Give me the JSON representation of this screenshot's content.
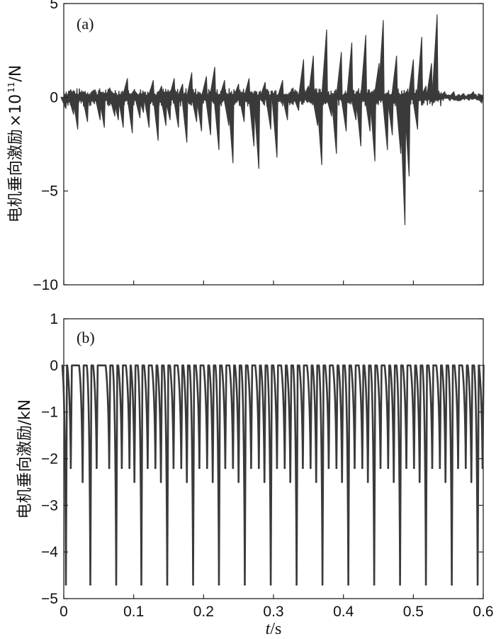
{
  "chart_data": [
    {
      "panel": "(a)",
      "type": "line",
      "ylabel": "电机垂向激励",
      "ylabel_scale": "×10",
      "ylabel_exponent": "11",
      "ylabel_unit": "/N",
      "ylim": [
        -10,
        5
      ],
      "xlim": [
        0,
        0.6
      ],
      "yticks": [
        "5",
        "0",
        "−5",
        "−10"
      ],
      "ytick_values": [
        5,
        0,
        -5,
        -10
      ],
      "xtick_values": [
        0,
        0.1,
        0.2,
        0.3,
        0.4,
        0.5,
        0.6
      ],
      "color": "#3a3a3a",
      "spikes": [
        {
          "x": 0.003,
          "y": -0.6
        },
        {
          "x": 0.01,
          "y": 0.4
        },
        {
          "x": 0.014,
          "y": -0.9
        },
        {
          "x": 0.02,
          "y": -1.7
        },
        {
          "x": 0.028,
          "y": 0.3
        },
        {
          "x": 0.034,
          "y": -1.3
        },
        {
          "x": 0.045,
          "y": 0.4
        },
        {
          "x": 0.052,
          "y": -1.2
        },
        {
          "x": 0.058,
          "y": -1.6
        },
        {
          "x": 0.066,
          "y": 0.5
        },
        {
          "x": 0.073,
          "y": -1.0
        },
        {
          "x": 0.078,
          "y": -1.2
        },
        {
          "x": 0.085,
          "y": -1.6
        },
        {
          "x": 0.091,
          "y": 1.0
        },
        {
          "x": 0.098,
          "y": -1.9
        },
        {
          "x": 0.101,
          "y": 0.4
        },
        {
          "x": 0.109,
          "y": -1.1
        },
        {
          "x": 0.114,
          "y": -0.8
        },
        {
          "x": 0.122,
          "y": -1.6
        },
        {
          "x": 0.128,
          "y": 0.9
        },
        {
          "x": 0.135,
          "y": -2.3
        },
        {
          "x": 0.14,
          "y": 0.6
        },
        {
          "x": 0.146,
          "y": -1.5
        },
        {
          "x": 0.152,
          "y": -1.2
        },
        {
          "x": 0.158,
          "y": 1.0
        },
        {
          "x": 0.164,
          "y": -1.6
        },
        {
          "x": 0.17,
          "y": 0.7
        },
        {
          "x": 0.176,
          "y": -2.4
        },
        {
          "x": 0.183,
          "y": 1.3
        },
        {
          "x": 0.19,
          "y": -1.3
        },
        {
          "x": 0.197,
          "y": -1.8
        },
        {
          "x": 0.204,
          "y": 1.1
        },
        {
          "x": 0.21,
          "y": -2.0
        },
        {
          "x": 0.216,
          "y": 1.6
        },
        {
          "x": 0.222,
          "y": -2.8
        },
        {
          "x": 0.23,
          "y": 0.9
        },
        {
          "x": 0.236,
          "y": -1.5
        },
        {
          "x": 0.242,
          "y": -3.5
        },
        {
          "x": 0.25,
          "y": 0.7
        },
        {
          "x": 0.258,
          "y": -1.3
        },
        {
          "x": 0.265,
          "y": 1.0
        },
        {
          "x": 0.272,
          "y": -2.6
        },
        {
          "x": 0.279,
          "y": -3.8
        },
        {
          "x": 0.288,
          "y": 0.8
        },
        {
          "x": 0.296,
          "y": -1.7
        },
        {
          "x": 0.305,
          "y": -3.2
        },
        {
          "x": 0.313,
          "y": 0.9
        },
        {
          "x": 0.32,
          "y": -1.2
        },
        {
          "x": 0.328,
          "y": 0.5
        },
        {
          "x": 0.336,
          "y": -0.7
        },
        {
          "x": 0.343,
          "y": 2.0
        },
        {
          "x": 0.35,
          "y": 0.6
        },
        {
          "x": 0.357,
          "y": 2.2
        },
        {
          "x": 0.363,
          "y": -1.5
        },
        {
          "x": 0.369,
          "y": -3.6
        },
        {
          "x": 0.376,
          "y": 3.6
        },
        {
          "x": 0.383,
          "y": -1.0
        },
        {
          "x": 0.39,
          "y": -3.0
        },
        {
          "x": 0.397,
          "y": 2.4
        },
        {
          "x": 0.404,
          "y": -1.8
        },
        {
          "x": 0.412,
          "y": 2.9
        },
        {
          "x": 0.418,
          "y": -1.2
        },
        {
          "x": 0.425,
          "y": -2.6
        },
        {
          "x": 0.432,
          "y": 3.3
        },
        {
          "x": 0.438,
          "y": -1.8
        },
        {
          "x": 0.445,
          "y": -3.4
        },
        {
          "x": 0.451,
          "y": 1.8
        },
        {
          "x": 0.457,
          "y": 4.1
        },
        {
          "x": 0.463,
          "y": -2.8
        },
        {
          "x": 0.47,
          "y": -2.0
        },
        {
          "x": 0.476,
          "y": 2.2
        },
        {
          "x": 0.482,
          "y": -3.0
        },
        {
          "x": 0.488,
          "y": -6.8
        },
        {
          "x": 0.494,
          "y": -4.2
        },
        {
          "x": 0.5,
          "y": 2.0
        },
        {
          "x": 0.506,
          "y": -1.7
        },
        {
          "x": 0.512,
          "y": 3.2
        },
        {
          "x": 0.518,
          "y": 0.6
        },
        {
          "x": 0.526,
          "y": 1.8
        },
        {
          "x": 0.534,
          "y": 4.4
        },
        {
          "x": 0.545,
          "y": 0.3
        },
        {
          "x": 0.558,
          "y": 0.3
        },
        {
          "x": 0.572,
          "y": 0.2
        },
        {
          "x": 0.586,
          "y": 0.3
        },
        {
          "x": 0.598,
          "y": -0.3
        }
      ]
    },
    {
      "panel": "(b)",
      "type": "line",
      "ylabel": "电机垂向激励/kN",
      "xlabel_var": "t",
      "xlabel_unit": "/s",
      "ylim": [
        -5,
        1
      ],
      "xlim": [
        0,
        0.6
      ],
      "yticks": [
        "1",
        "0",
        "−1",
        "−2",
        "−3",
        "−4",
        "−5"
      ],
      "ytick_values": [
        1,
        0,
        -1,
        -2,
        -3,
        -4,
        -5
      ],
      "xticks": [
        "0",
        "0.1",
        "0.2",
        "0.3",
        "0.4",
        "0.5",
        "0.6"
      ],
      "xtick_values": [
        0,
        0.1,
        0.2,
        0.3,
        0.4,
        0.5,
        0.6
      ],
      "color": "#3a3a3a",
      "impacts": [
        {
          "x": 0.003,
          "y": -4.7
        },
        {
          "x": 0.01,
          "y": -2.2
        },
        {
          "x": 0.027,
          "y": -2.5
        },
        {
          "x": 0.038,
          "y": -4.7
        },
        {
          "x": 0.047,
          "y": -2.2
        },
        {
          "x": 0.065,
          "y": -2.2
        },
        {
          "x": 0.075,
          "y": -4.7
        },
        {
          "x": 0.083,
          "y": -2.2
        },
        {
          "x": 0.094,
          "y": -2.2
        },
        {
          "x": 0.101,
          "y": -2.5
        },
        {
          "x": 0.111,
          "y": -4.7
        },
        {
          "x": 0.12,
          "y": -2.2
        },
        {
          "x": 0.131,
          "y": -2.2
        },
        {
          "x": 0.139,
          "y": -2.5
        },
        {
          "x": 0.148,
          "y": -4.7
        },
        {
          "x": 0.157,
          "y": -2.2
        },
        {
          "x": 0.168,
          "y": -2.2
        },
        {
          "x": 0.176,
          "y": -2.5
        },
        {
          "x": 0.185,
          "y": -4.7
        },
        {
          "x": 0.194,
          "y": -2.2
        },
        {
          "x": 0.205,
          "y": -2.2
        },
        {
          "x": 0.213,
          "y": -2.5
        },
        {
          "x": 0.222,
          "y": -4.7
        },
        {
          "x": 0.231,
          "y": -2.2
        },
        {
          "x": 0.242,
          "y": -2.2
        },
        {
          "x": 0.25,
          "y": -2.5
        },
        {
          "x": 0.259,
          "y": -4.7
        },
        {
          "x": 0.268,
          "y": -2.2
        },
        {
          "x": 0.279,
          "y": -2.2
        },
        {
          "x": 0.287,
          "y": -2.5
        },
        {
          "x": 0.296,
          "y": -4.7
        },
        {
          "x": 0.305,
          "y": -2.2
        },
        {
          "x": 0.316,
          "y": -2.2
        },
        {
          "x": 0.324,
          "y": -2.5
        },
        {
          "x": 0.333,
          "y": -4.7
        },
        {
          "x": 0.342,
          "y": -2.2
        },
        {
          "x": 0.353,
          "y": -2.2
        },
        {
          "x": 0.361,
          "y": -2.5
        },
        {
          "x": 0.37,
          "y": -4.7
        },
        {
          "x": 0.379,
          "y": -2.2
        },
        {
          "x": 0.39,
          "y": -2.2
        },
        {
          "x": 0.398,
          "y": -2.5
        },
        {
          "x": 0.407,
          "y": -4.7
        },
        {
          "x": 0.416,
          "y": -2.2
        },
        {
          "x": 0.427,
          "y": -2.2
        },
        {
          "x": 0.435,
          "y": -2.5
        },
        {
          "x": 0.444,
          "y": -4.7
        },
        {
          "x": 0.453,
          "y": -2.2
        },
        {
          "x": 0.464,
          "y": -2.2
        },
        {
          "x": 0.472,
          "y": -2.5
        },
        {
          "x": 0.481,
          "y": -4.7
        },
        {
          "x": 0.49,
          "y": -2.2
        },
        {
          "x": 0.501,
          "y": -2.2
        },
        {
          "x": 0.509,
          "y": -2.5
        },
        {
          "x": 0.518,
          "y": -4.7
        },
        {
          "x": 0.527,
          "y": -2.2
        },
        {
          "x": 0.538,
          "y": -2.2
        },
        {
          "x": 0.546,
          "y": -2.5
        },
        {
          "x": 0.555,
          "y": -4.7
        },
        {
          "x": 0.564,
          "y": -2.2
        },
        {
          "x": 0.575,
          "y": -2.2
        },
        {
          "x": 0.583,
          "y": -2.5
        },
        {
          "x": 0.592,
          "y": -4.7
        },
        {
          "x": 0.599,
          "y": -2.2
        }
      ]
    }
  ]
}
